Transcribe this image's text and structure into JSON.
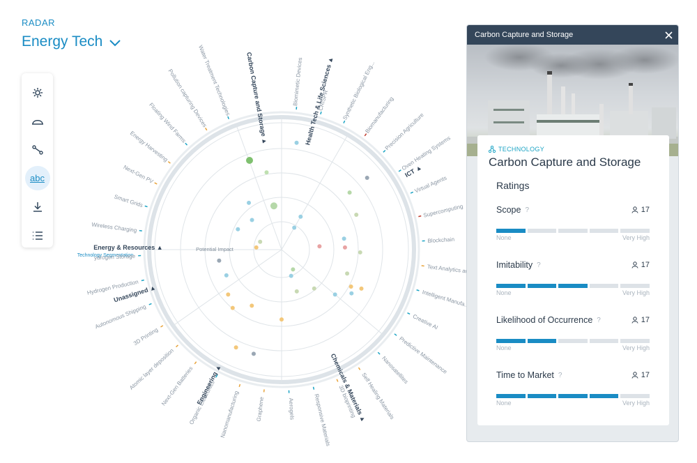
{
  "header": {
    "kicker": "RADAR",
    "title": "Energy Tech"
  },
  "toolbar": {
    "items": [
      {
        "icon": "gear-icon",
        "active": false
      },
      {
        "icon": "arc-icon",
        "active": false
      },
      {
        "icon": "connections-icon",
        "active": false
      },
      {
        "icon": "abc-icon",
        "label": "abc",
        "active": true
      },
      {
        "icon": "download-icon",
        "active": false
      },
      {
        "icon": "list-icon",
        "active": false
      }
    ]
  },
  "radar": {
    "segments": [
      {
        "label": "Health Tech & Life Sciences",
        "start": -90,
        "end": -60
      },
      {
        "label": "ICT",
        "start": -60,
        "end": 40
      },
      {
        "label": "Chemicals & Materials",
        "start": 40,
        "end": 90
      },
      {
        "label": "Engineering",
        "start": 90,
        "end": 145
      },
      {
        "label": "Unassigned",
        "start": 145,
        "end": 180
      },
      {
        "label": "Energy & Resources",
        "start": 180,
        "end": 250
      },
      {
        "label": "Carbon Capture and Storage",
        "start": 250,
        "end": 270
      }
    ],
    "segment_sub": "Technology Segmentation",
    "axis_label": "Potential Impact",
    "technologies": [
      "Biomimetic Devices",
      "CRISPR",
      "Synthetic Biological Eng...",
      "Biomanufacturing",
      "Precision Agriculture",
      "Oven Heating Systems",
      "Virtual Agents",
      "Supercomputing",
      "Blockchain",
      "Text Analytics and...",
      "Intelligent Manufa...",
      "Creative AI",
      "Predictive Maintenance",
      "Nanosatellites",
      "Self Healing Materials",
      "3D bioprinting",
      "Responsive Materials",
      "Aerogels",
      "Graphene",
      "Nanomanufacturing",
      "Organic Electronics",
      "Next-Gen Batteries",
      "Atomic layer deposition",
      "3D Printing",
      "Autonomous Shipping",
      "Hydrogen Production",
      "ydrogen Storage",
      "Wireless Charging",
      "Smart Grids",
      "Next-Gen PV",
      "Energy Harvesting",
      "Floating Wind Farms",
      "Pollution capturing Devices",
      "Water Treatment Technologies"
    ],
    "technology_colors": [
      "#1aa3c4",
      "#1aa3c4",
      "#1aa3c4",
      "#c0392b",
      "#1aa3c4",
      "#1aa3c4",
      "#1aa3c4",
      "#c0392b",
      "#1aa3c4",
      "#e8a33a",
      "#1aa3c4",
      "#1aa3c4",
      "#1aa3c4",
      "#1aa3c4",
      "#e8a33a",
      "#e8a33a",
      "#1aa3c4",
      "#1aa3c4",
      "#e8a33a",
      "#e8a33a",
      "#1aa3c4",
      "#e8a33a",
      "#e8a33a",
      "#e8a33a",
      "#1aa3c4",
      "#1aa3c4",
      "#1aa3c4",
      "#1aa3c4",
      "#1aa3c4",
      "#e8a33a",
      "#e8a33a",
      "#1aa3c4",
      "#e8a33a",
      "#1aa3c4"
    ]
  },
  "panel": {
    "header_title": "Carbon Capture and Storage",
    "kicker": "TECHNOLOGY",
    "title": "Carbon Capture and Storage",
    "ratings_heading": "Ratings",
    "ratings": [
      {
        "name": "Scope",
        "count": "17",
        "level": 1,
        "max": 5,
        "low": "None",
        "high": "Very High"
      },
      {
        "name": "Imitability",
        "count": "17",
        "level": 3,
        "max": 5,
        "low": "None",
        "high": "Very High"
      },
      {
        "name": "Likelihood of Occurrence",
        "count": "17",
        "level": 2,
        "max": 5,
        "low": "None",
        "high": "Very High"
      },
      {
        "name": "Time to Market",
        "count": "17",
        "level": 4,
        "max": 5,
        "low": "None",
        "high": "Very High"
      }
    ]
  },
  "colors": {
    "accent": "#1a8cc4",
    "panel_header": "#34465a",
    "segment_text": "#34465a"
  }
}
